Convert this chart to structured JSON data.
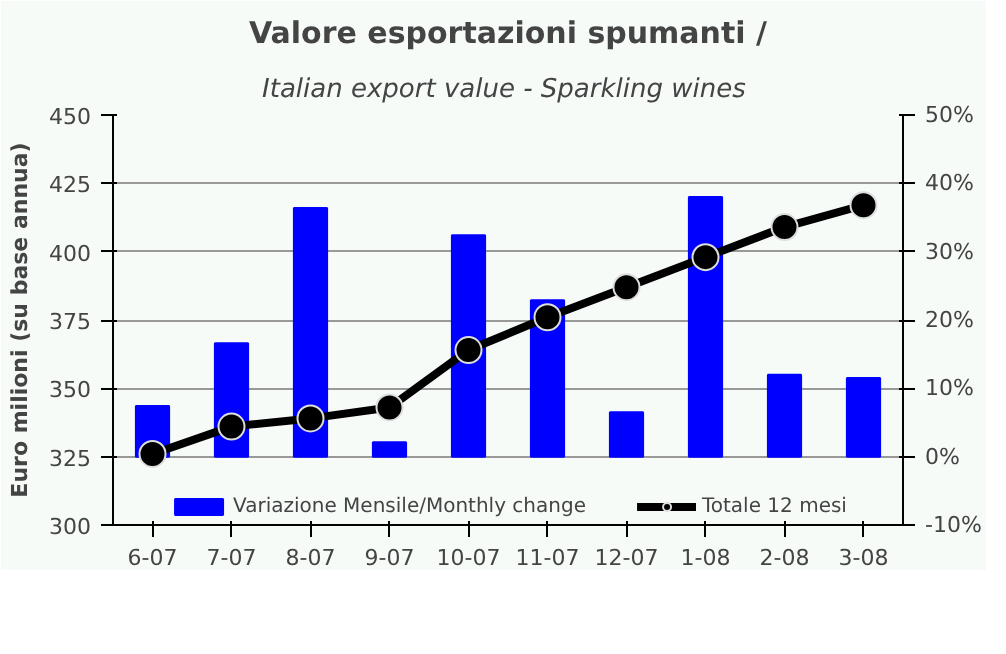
{
  "chart_data": {
    "type": "bar",
    "title": "Valore esportazioni spumanti /",
    "subtitle": "Italian export value  - Sparkling wines",
    "ylabel": "Euro milioni (su base annua)",
    "categories": [
      "6-07",
      "7-07",
      "8-07",
      "9-07",
      "10-07",
      "11-07",
      "12-07",
      "1-08",
      "2-08",
      "3-08"
    ],
    "series": [
      {
        "name": "Variazione Mensile/Monthly change",
        "axis": "y2",
        "color": "#0000ff",
        "values": [
          7.4,
          16.6,
          36.4,
          2.1,
          32.4,
          22.9,
          6.5,
          38.0,
          12.0,
          11.5
        ]
      },
      {
        "name": "Totale 12 mesi",
        "type": "line",
        "color": "#000000",
        "marker": "circle",
        "values": [
          326,
          336,
          339,
          343,
          364,
          376,
          387,
          398,
          409,
          417
        ]
      }
    ],
    "ylim": [
      300,
      450
    ],
    "yticks": [
      300,
      325,
      350,
      375,
      400,
      425,
      450
    ],
    "y2lim": [
      -10,
      50
    ],
    "y2ticks": [
      {
        "value": -10,
        "label": "-10%"
      },
      {
        "value": 0,
        "label": "0%"
      },
      {
        "value": 10,
        "label": "10%"
      },
      {
        "value": 20,
        "label": "20%"
      },
      {
        "value": 30,
        "label": "30%"
      },
      {
        "value": 40,
        "label": "40%"
      },
      {
        "value": 50,
        "label": "50%"
      }
    ],
    "grid": "y",
    "legend": "bottom"
  }
}
